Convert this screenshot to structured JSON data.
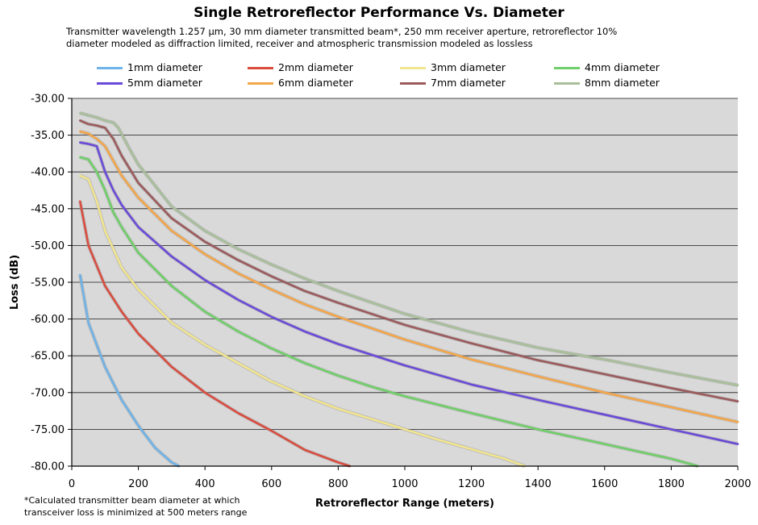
{
  "chart_data": {
    "type": "line",
    "title": "Single Retroreflector Performance Vs. Diameter",
    "subtitle_lines": [
      "Transmitter wavelength 1.257 μm, 30 mm diameter transmitted beam*, 250 mm receiver aperture, retroreflector 10%",
      "diameter modeled as diffraction limited, receiver and atmospheric transmission modeled as lossless"
    ],
    "xlabel": "Retroreflector Range (meters)",
    "ylabel": "Loss (dB)",
    "xlim": [
      0,
      2000
    ],
    "ylim": [
      -80,
      -30
    ],
    "xticks": [
      "0",
      "200",
      "400",
      "600",
      "800",
      "1000",
      "1200",
      "1400",
      "1600",
      "1800",
      "2000"
    ],
    "yticks": [
      "-30.00",
      "-35.00",
      "-40.00",
      "-45.00",
      "-50.00",
      "-55.00",
      "-60.00",
      "-65.00",
      "-70.00",
      "-75.00",
      "-80.00"
    ],
    "grid": true,
    "legend_position": "top",
    "footnote_lines": [
      "*Calculated transmitter beam diameter at which",
      "transceiver loss is minimized at 500 meters range"
    ],
    "series": [
      {
        "name": "1mm diameter",
        "color": "#6fb3e8",
        "x": [
          25,
          50,
          100,
          150,
          200,
          250,
          300,
          322
        ],
        "y": [
          -54.0,
          -60.5,
          -66.5,
          -71.0,
          -74.5,
          -77.5,
          -79.5,
          -80.0
        ]
      },
      {
        "name": "2mm diameter",
        "color": "#d94c3f",
        "x": [
          25,
          50,
          100,
          150,
          200,
          300,
          400,
          500,
          600,
          700,
          800,
          835
        ],
        "y": [
          -44.0,
          -50.0,
          -55.5,
          -59.0,
          -62.0,
          -66.5,
          -70.0,
          -72.8,
          -75.2,
          -77.8,
          -79.5,
          -80.0
        ]
      },
      {
        "name": "3mm diameter",
        "color": "#f1e58f",
        "x": [
          25,
          50,
          75,
          100,
          150,
          200,
          300,
          400,
          500,
          600,
          700,
          800,
          900,
          1000,
          1100,
          1200,
          1300,
          1360
        ],
        "y": [
          -40.5,
          -41.0,
          -44.0,
          -48.0,
          -53.0,
          -56.0,
          -60.5,
          -63.5,
          -66.0,
          -68.5,
          -70.5,
          -72.2,
          -73.6,
          -75.0,
          -76.4,
          -77.7,
          -79.0,
          -80.0
        ]
      },
      {
        "name": "4mm diameter",
        "color": "#6fcf68",
        "x": [
          25,
          50,
          75,
          100,
          125,
          150,
          200,
          300,
          400,
          500,
          600,
          700,
          800,
          900,
          1000,
          1200,
          1400,
          1600,
          1800,
          1880
        ],
        "y": [
          -38.0,
          -38.3,
          -40.0,
          -42.5,
          -45.5,
          -47.5,
          -51.0,
          -55.5,
          -59.0,
          -61.7,
          -64.0,
          -66.0,
          -67.7,
          -69.2,
          -70.5,
          -72.8,
          -75.0,
          -77.0,
          -79.0,
          -80.0
        ]
      },
      {
        "name": "5mm diameter",
        "color": "#6a4ad8",
        "x": [
          25,
          50,
          75,
          100,
          125,
          150,
          200,
          300,
          400,
          500,
          600,
          700,
          800,
          1000,
          1200,
          1400,
          1600,
          1800,
          2000
        ],
        "y": [
          -36.0,
          -36.2,
          -36.5,
          -40.0,
          -42.5,
          -44.5,
          -47.5,
          -51.5,
          -54.7,
          -57.4,
          -59.7,
          -61.7,
          -63.4,
          -66.3,
          -68.9,
          -71.0,
          -73.0,
          -75.0,
          -77.0
        ]
      },
      {
        "name": "6mm diameter",
        "color": "#f4a64a",
        "x": [
          25,
          50,
          75,
          100,
          125,
          150,
          200,
          300,
          400,
          500,
          600,
          700,
          800,
          1000,
          1200,
          1400,
          1600,
          1800,
          2000
        ],
        "y": [
          -34.5,
          -34.8,
          -35.5,
          -36.5,
          -38.5,
          -40.5,
          -43.5,
          -48.0,
          -51.2,
          -53.8,
          -56.0,
          -58.0,
          -59.7,
          -62.8,
          -65.5,
          -67.8,
          -70.0,
          -72.0,
          -74.0
        ]
      },
      {
        "name": "7mm diameter",
        "color": "#9b5a5c",
        "x": [
          25,
          50,
          75,
          100,
          125,
          150,
          200,
          300,
          400,
          500,
          600,
          700,
          800,
          1000,
          1200,
          1400,
          1600,
          1800,
          2000
        ],
        "y": [
          -33.0,
          -33.5,
          -33.7,
          -34.0,
          -35.5,
          -37.8,
          -41.5,
          -46.3,
          -49.5,
          -52.0,
          -54.2,
          -56.2,
          -57.8,
          -60.8,
          -63.3,
          -65.6,
          -67.5,
          -69.4,
          -71.2
        ]
      },
      {
        "name": "8mm diameter",
        "color": "#a8bf9a",
        "x": [
          25,
          50,
          75,
          100,
          125,
          140,
          175,
          200,
          300,
          400,
          500,
          600,
          700,
          800,
          1000,
          1200,
          1400,
          1600,
          1800,
          2000
        ],
        "y": [
          -32.0,
          -32.3,
          -32.6,
          -33.0,
          -33.3,
          -34.0,
          -37.0,
          -39.0,
          -44.7,
          -48.0,
          -50.5,
          -52.6,
          -54.5,
          -56.2,
          -59.3,
          -61.8,
          -63.9,
          -65.5,
          -67.3,
          -69.0
        ]
      }
    ]
  }
}
